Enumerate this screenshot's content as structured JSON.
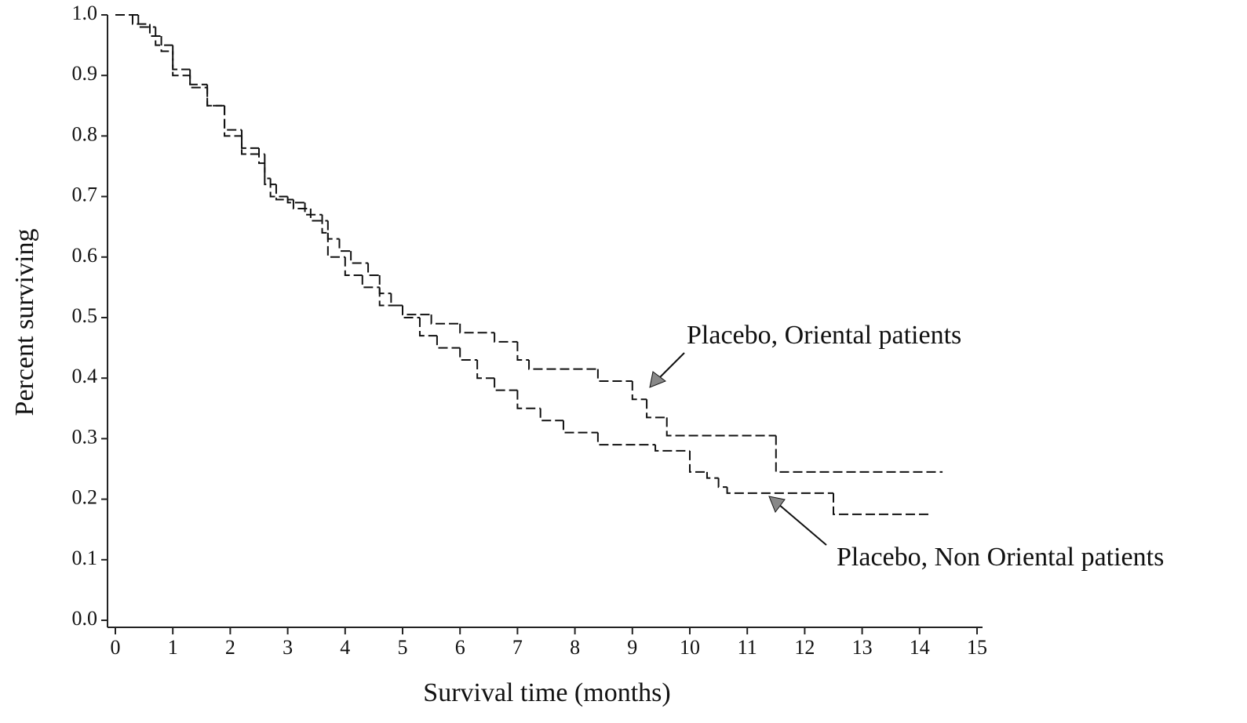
{
  "chart_data": {
    "type": "step",
    "xlabel": "Survival time (months)",
    "ylabel": "Percent surviving",
    "xlim": [
      0,
      15
    ],
    "ylim": [
      0,
      1
    ],
    "xticks": [
      0,
      1,
      2,
      3,
      4,
      5,
      6,
      7,
      8,
      9,
      10,
      11,
      12,
      13,
      14,
      15
    ],
    "yticks": [
      {
        "value": 0,
        "label": "0.0"
      },
      0.1,
      0.2,
      0.3,
      0.4,
      0.5,
      0.6,
      0.7,
      0.8,
      0.9,
      {
        "value": 1,
        "label": "1.0"
      }
    ],
    "annotations": [
      "Placebo, Oriental patients",
      "Placebo, Non Oriental patients"
    ],
    "series": [
      {
        "color": "#111111",
        "x": [
          0,
          0.3,
          0.6,
          0.8,
          1.0,
          1.3,
          1.6,
          1.9,
          2.2,
          2.5,
          2.6,
          2.8,
          3.1,
          3.4,
          3.7,
          3.9,
          4.1,
          4.4,
          4.6,
          4.8,
          5.0,
          5.5,
          6.0,
          6.6,
          7.0,
          7.2,
          8.4,
          9.0,
          9.25,
          9.6,
          11.5,
          14.4
        ],
        "values": [
          1.0,
          0.985,
          0.965,
          0.94,
          0.91,
          0.885,
          0.85,
          0.81,
          0.78,
          0.755,
          0.72,
          0.695,
          0.68,
          0.66,
          0.63,
          0.61,
          0.59,
          0.57,
          0.54,
          0.52,
          0.505,
          0.49,
          0.475,
          0.46,
          0.43,
          0.415,
          0.395,
          0.365,
          0.335,
          0.305,
          0.245,
          0.245
        ]
      },
      {
        "color": "#111111",
        "x": [
          0,
          0.4,
          0.7,
          1.0,
          1.3,
          1.6,
          1.9,
          2.2,
          2.6,
          2.7,
          3.0,
          3.3,
          3.6,
          3.7,
          4.0,
          4.3,
          4.6,
          5.0,
          5.3,
          5.6,
          6.0,
          6.3,
          6.6,
          7.0,
          7.4,
          7.8,
          8.4,
          9.4,
          10.0,
          10.3,
          10.5,
          10.65,
          12.5,
          14.2
        ],
        "values": [
          1.0,
          0.98,
          0.95,
          0.9,
          0.88,
          0.85,
          0.8,
          0.77,
          0.73,
          0.7,
          0.69,
          0.67,
          0.64,
          0.6,
          0.57,
          0.55,
          0.52,
          0.5,
          0.47,
          0.45,
          0.43,
          0.4,
          0.38,
          0.35,
          0.33,
          0.31,
          0.29,
          0.28,
          0.245,
          0.235,
          0.22,
          0.21,
          0.175,
          0.175
        ]
      }
    ]
  }
}
